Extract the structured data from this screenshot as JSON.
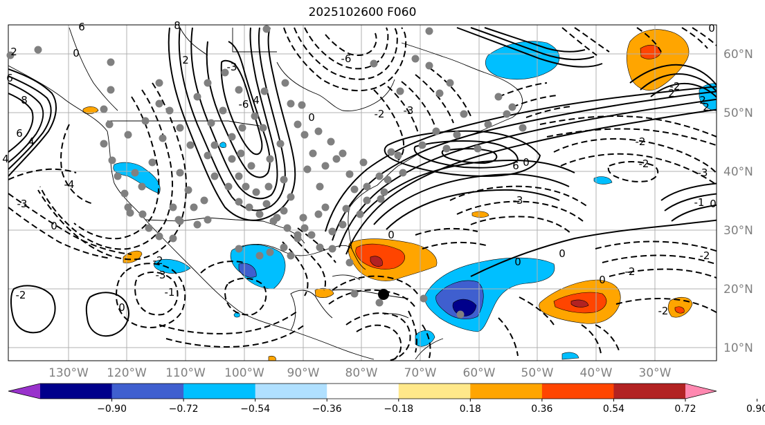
{
  "title": "2025102600 F060",
  "longitude_labels": [
    "130°W",
    "120°W",
    "110°W",
    "100°W",
    "90°W",
    "80°W",
    "70°W",
    "60°W",
    "50°W",
    "40°W",
    "30°W"
  ],
  "latitude_labels": [
    "60°N",
    "50°N",
    "40°N",
    "30°N",
    "20°N",
    "10°N"
  ],
  "colorbar": {
    "ticks": [
      "−0.90",
      "−0.72",
      "−0.54",
      "−0.36",
      "−0.18",
      "0.18",
      "0.36",
      "0.54",
      "0.72",
      "0.90"
    ],
    "colors": [
      "#9932cc",
      "#00008b",
      "#3f5fcf",
      "#00bfff",
      "#b0e0ff",
      "#ffffff",
      "#ffe88a",
      "#ffa500",
      "#ff4500",
      "#b22222",
      "#ff88b0"
    ]
  },
  "contour_labels": [
    "6",
    "8",
    "6",
    "4",
    "2",
    "0",
    "-3",
    "-4",
    "2",
    "4",
    "6",
    "8",
    "-3",
    "-6",
    "-6",
    "-3",
    "-2",
    "-2",
    "-3",
    "0",
    "-1",
    "-2",
    "0",
    "0",
    "4",
    "6",
    "2",
    "-2",
    "0",
    "2",
    "-2",
    "0",
    "-3",
    "-2",
    "-2",
    "-3",
    "0",
    "0",
    "-2",
    "0",
    "-2",
    "-1",
    "0",
    "0",
    "2"
  ],
  "observation_marker": "black-dot"
}
